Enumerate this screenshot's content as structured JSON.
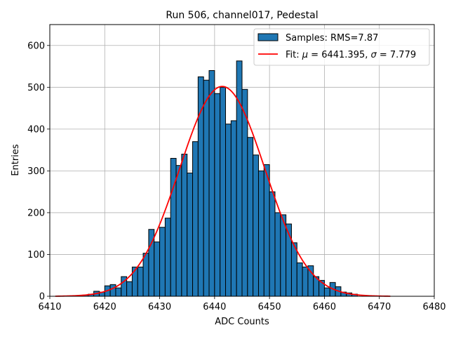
{
  "chart_data": {
    "type": "bar",
    "title": "Run 506, channel017, Pedestal",
    "xlabel": "ADC Counts",
    "ylabel": "Entries",
    "xlim": [
      6410,
      6480
    ],
    "ylim": [
      0,
      650
    ],
    "xticks": [
      6410,
      6420,
      6430,
      6440,
      6450,
      6460,
      6470,
      6480
    ],
    "yticks": [
      0,
      100,
      200,
      300,
      400,
      500,
      600
    ],
    "grid": true,
    "legend_position": "top-right",
    "bar_color": "#1f77b4",
    "bar_edge_color": "#000000",
    "fit_color": "#ff0000",
    "series": [
      {
        "name": "Samples: RMS=7.87",
        "type": "histogram",
        "bin_width": 1,
        "bin_starts": [
          6416,
          6417,
          6418,
          6419,
          6420,
          6421,
          6422,
          6423,
          6424,
          6425,
          6426,
          6427,
          6428,
          6429,
          6430,
          6431,
          6432,
          6433,
          6434,
          6435,
          6436,
          6437,
          6438,
          6439,
          6440,
          6441,
          6442,
          6443,
          6444,
          6445,
          6446,
          6447,
          6448,
          6449,
          6450,
          6451,
          6452,
          6453,
          6454,
          6455,
          6456,
          6457,
          6458,
          6459,
          6460,
          6461,
          6462,
          6463,
          6464,
          6465
        ],
        "counts": [
          3,
          5,
          12,
          10,
          25,
          28,
          20,
          47,
          35,
          70,
          70,
          103,
          160,
          130,
          165,
          187,
          330,
          313,
          340,
          295,
          370,
          525,
          517,
          540,
          485,
          500,
          412,
          420,
          563,
          495,
          380,
          338,
          300,
          315,
          250,
          200,
          195,
          173,
          128,
          80,
          70,
          73,
          47,
          38,
          20,
          33,
          23,
          10,
          8,
          5
        ]
      },
      {
        "name": "Fit: μ = 6441.395, σ = 7.779",
        "type": "line",
        "mu": 6441.395,
        "sigma": 7.779,
        "amplitude": 502,
        "x_range": [
          6411,
          6472
        ]
      }
    ],
    "legend": {
      "samples_label": "Samples: RMS=7.87",
      "fit_label_prefix": "Fit: ",
      "fit_mu_symbol": "μ",
      "fit_mu_text": " = 6441.395, ",
      "fit_sigma_symbol": "σ",
      "fit_sigma_text": " = 7.779"
    }
  }
}
